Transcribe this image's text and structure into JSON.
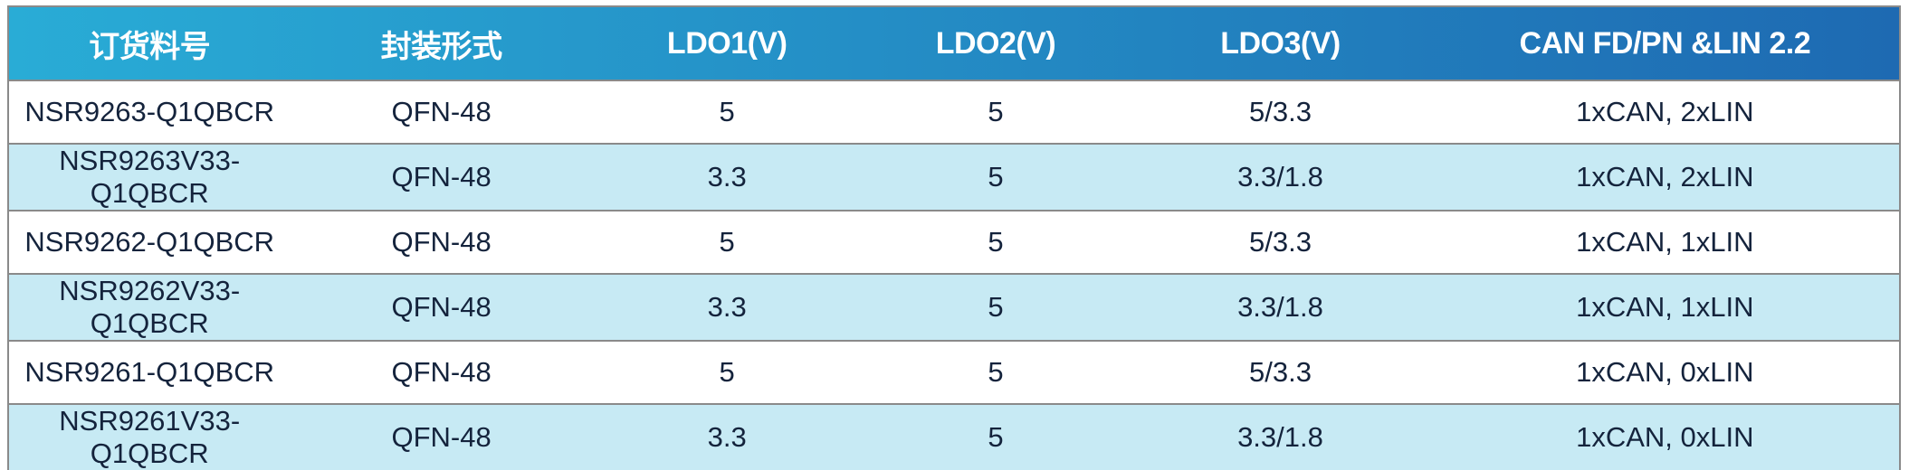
{
  "table": {
    "columns": [
      {
        "label": "订货料号"
      },
      {
        "label": "封装形式"
      },
      {
        "label": "LDO1(V)"
      },
      {
        "label": "LDO2(V)"
      },
      {
        "label": "LDO3(V)"
      },
      {
        "label": "CAN FD/PN &LIN 2.2"
      }
    ],
    "rows": [
      [
        "NSR9263-Q1QBCR",
        "QFN-48",
        "5",
        "5",
        "5/3.3",
        "1xCAN, 2xLIN"
      ],
      [
        "NSR9263V33-Q1QBCR",
        "QFN-48",
        "3.3",
        "5",
        "3.3/1.8",
        "1xCAN, 2xLIN"
      ],
      [
        "NSR9262-Q1QBCR",
        "QFN-48",
        "5",
        "5",
        "5/3.3",
        "1xCAN, 1xLIN"
      ],
      [
        "NSR9262V33-Q1QBCR",
        "QFN-48",
        "3.3",
        "5",
        "3.3/1.8",
        "1xCAN, 1xLIN"
      ],
      [
        "NSR9261-Q1QBCR",
        "QFN-48",
        "5",
        "5",
        "5/3.3",
        "1xCAN, 0xLIN"
      ],
      [
        "NSR9261V33-Q1QBCR",
        "QFN-48",
        "3.3",
        "5",
        "3.3/1.8",
        "1xCAN, 0xLIN"
      ]
    ]
  },
  "colors": {
    "header_gradient_start": "#29ACD6",
    "header_gradient_end": "#1E6AB2",
    "header_text": "#FFFFFF",
    "row_bg": "#FFFFFF",
    "row_alt_bg": "#C7EAF4",
    "body_text": "#14233C",
    "grid_line": "#8A8A8A"
  }
}
